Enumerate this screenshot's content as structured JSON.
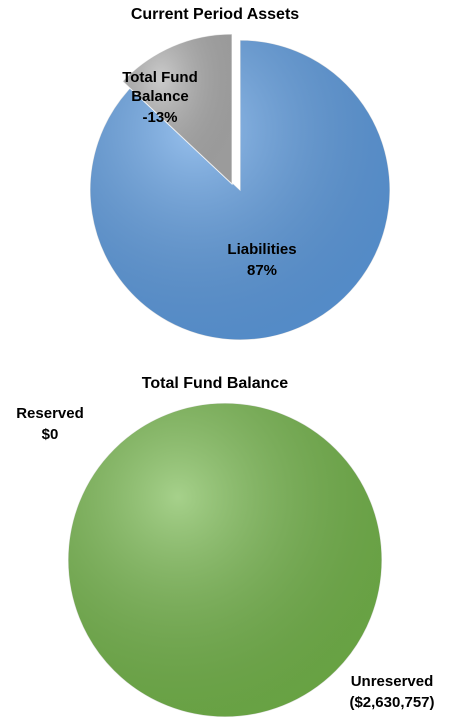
{
  "chart_data": [
    {
      "type": "pie",
      "title": "Current Period Assets",
      "categories": [
        "Liabilities",
        "Total Fund Balance"
      ],
      "values": [
        87,
        -13
      ],
      "value_labels": [
        "87%",
        "-13%"
      ],
      "colors": [
        "#5f9ee3",
        "#b0b0b0"
      ]
    },
    {
      "type": "pie",
      "title": "Total Fund Balance",
      "categories": [
        "Unreserved",
        "Reserved"
      ],
      "values": [
        -2630757,
        0
      ],
      "value_labels": [
        "($2,630,757)",
        "$0"
      ],
      "colors": [
        "#76b84c",
        "#4f81bd"
      ]
    }
  ]
}
